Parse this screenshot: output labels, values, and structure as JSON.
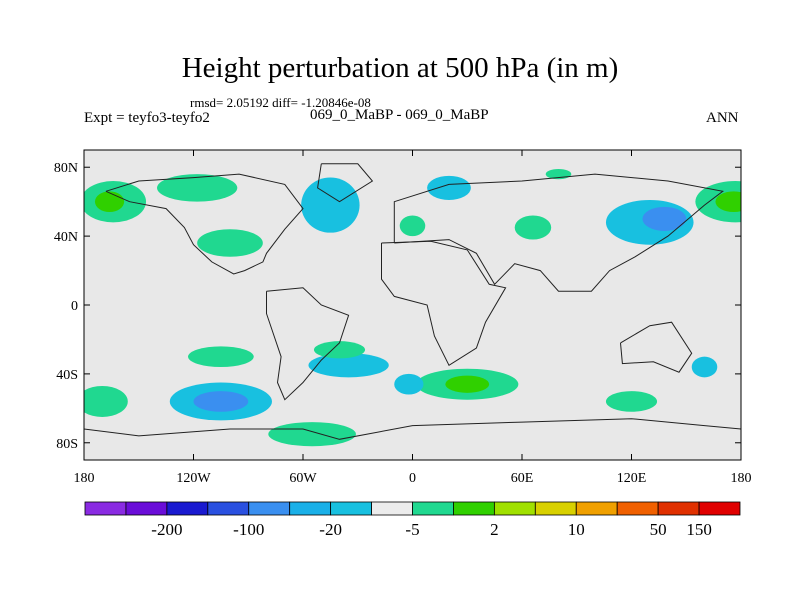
{
  "figure": {
    "title": "Height perturbation at 500 hPa (in m)",
    "stats": "rmsd= 2.05192 diff= -1.20846e-08",
    "expt": "Expt = teyfo3-teyfo2",
    "period": "069_0_MaBP - 069_0_MaBP",
    "season": "ANN"
  },
  "axes": {
    "lat_labels": [
      "80N",
      "40N",
      "0",
      "40S",
      "80S"
    ],
    "lat_values": [
      80,
      40,
      0,
      -40,
      -80
    ],
    "lon_labels": [
      "180",
      "120W",
      "60W",
      "0",
      "60E",
      "120E",
      "180"
    ],
    "lon_values": [
      -180,
      -120,
      -60,
      0,
      60,
      120,
      180
    ],
    "lat_range": [
      -90,
      90
    ],
    "lon_range": [
      -180,
      180
    ]
  },
  "colorbar": {
    "colors": [
      "#8a2be2",
      "#6a0dd8",
      "#1a1ad0",
      "#2a50e0",
      "#3a8ff0",
      "#1ab0e8",
      "#18c0e0",
      "#ececec",
      "#20d890",
      "#30d000",
      "#a0e000",
      "#d8d000",
      "#f0a000",
      "#f06000",
      "#e03000",
      "#e00000"
    ],
    "labels": [
      "-200",
      "-100",
      "-20",
      "-5",
      "2",
      "10",
      "50",
      "150"
    ],
    "label_after_box": [
      1,
      3,
      5,
      7,
      9,
      11,
      13,
      14
    ]
  },
  "chart_data": {
    "type": "heatmap",
    "title": "Height perturbation at 500 hPa (in m)",
    "background_color": "#e8e8e8",
    "regions": [
      {
        "name": "north-pacific-positive",
        "lon": 177,
        "lat": 60,
        "rlon": 22,
        "rlat": 12,
        "color": "#20d890"
      },
      {
        "name": "north-pacific-positive-core",
        "lon": 176,
        "lat": 60,
        "rlon": 10,
        "rlat": 6,
        "color": "#30d000"
      },
      {
        "name": "north-pacific-positive-west",
        "lon": -164,
        "lat": 60,
        "rlon": 18,
        "rlat": 12,
        "color": "#20d890"
      },
      {
        "name": "north-pacific-positive-west-core",
        "lon": -166,
        "lat": 60,
        "rlon": 8,
        "rlat": 6,
        "color": "#30d000"
      },
      {
        "name": "north-america-positive",
        "lon": -118,
        "lat": 68,
        "rlon": 22,
        "rlat": 8,
        "color": "#20d890"
      },
      {
        "name": "central-pacific-positive",
        "lon": -100,
        "lat": 36,
        "rlon": 18,
        "rlat": 8,
        "color": "#20d890"
      },
      {
        "name": "north-atlantic-negative",
        "lon": -45,
        "lat": 58,
        "rlon": 16,
        "rlat": 16,
        "color": "#18c0e0"
      },
      {
        "name": "eurasia-negative",
        "lon": 20,
        "lat": 68,
        "rlon": 12,
        "rlat": 7,
        "color": "#18c0e0"
      },
      {
        "name": "europe-positive",
        "lon": 0,
        "lat": 46,
        "rlon": 7,
        "rlat": 6,
        "color": "#20d890"
      },
      {
        "name": "asia-positive",
        "lon": 66,
        "lat": 45,
        "rlon": 10,
        "rlat": 7,
        "color": "#20d890"
      },
      {
        "name": "north-asia-positive",
        "lon": 80,
        "lat": 76,
        "rlon": 7,
        "rlat": 3,
        "color": "#20d890"
      },
      {
        "name": "east-asia-negative",
        "lon": 130,
        "lat": 48,
        "rlon": 24,
        "rlat": 13,
        "color": "#18c0e0"
      },
      {
        "name": "east-asia-negative-core",
        "lon": 138,
        "lat": 50,
        "rlon": 12,
        "rlat": 7,
        "color": "#3a8ff0"
      },
      {
        "name": "south-pacific-positive-north",
        "lon": -105,
        "lat": -30,
        "rlon": 18,
        "rlat": 6,
        "color": "#20d890"
      },
      {
        "name": "south-pacific-negative",
        "lon": -105,
        "lat": -56,
        "rlon": 28,
        "rlat": 11,
        "color": "#18c0e0"
      },
      {
        "name": "south-pacific-negative-core",
        "lon": -105,
        "lat": -56,
        "rlon": 15,
        "rlat": 6,
        "color": "#3a8ff0"
      },
      {
        "name": "south-pacific-positive-west",
        "lon": -170,
        "lat": -56,
        "rlon": 14,
        "rlat": 9,
        "color": "#20d890"
      },
      {
        "name": "south-atlantic-negative",
        "lon": -35,
        "lat": -35,
        "rlon": 22,
        "rlat": 7,
        "color": "#18c0e0"
      },
      {
        "name": "south-atlantic-positive",
        "lon": -40,
        "lat": -26,
        "rlon": 14,
        "rlat": 5,
        "color": "#20d890"
      },
      {
        "name": "southern-ocean-positive",
        "lon": -55,
        "lat": -75,
        "rlon": 24,
        "rlat": 7,
        "color": "#20d890"
      },
      {
        "name": "south-africa-positive",
        "lon": 30,
        "lat": -46,
        "rlon": 28,
        "rlat": 9,
        "color": "#20d890"
      },
      {
        "name": "south-africa-positive-core",
        "lon": 30,
        "lat": -46,
        "rlon": 12,
        "rlat": 5,
        "color": "#30d000"
      },
      {
        "name": "south-africa-negative",
        "lon": -2,
        "lat": -46,
        "rlon": 8,
        "rlat": 6,
        "color": "#18c0e0"
      },
      {
        "name": "south-indian-positive",
        "lon": 120,
        "lat": -56,
        "rlon": 14,
        "rlat": 6,
        "color": "#20d890"
      },
      {
        "name": "south-indian-negative",
        "lon": 160,
        "lat": -36,
        "rlon": 7,
        "rlat": 6,
        "color": "#18c0e0"
      }
    ],
    "continent_outlines": [
      {
        "name": "north-america-outline",
        "points": [
          [
            -168,
            66
          ],
          [
            -150,
            72
          ],
          [
            -120,
            74
          ],
          [
            -95,
            76
          ],
          [
            -70,
            70
          ],
          [
            -60,
            56
          ],
          [
            -70,
            44
          ],
          [
            -80,
            30
          ],
          [
            -82,
            25
          ],
          [
            -92,
            20
          ],
          [
            -98,
            18
          ],
          [
            -110,
            25
          ],
          [
            -120,
            35
          ],
          [
            -125,
            45
          ],
          [
            -135,
            56
          ],
          [
            -155,
            60
          ],
          [
            -168,
            66
          ]
        ]
      },
      {
        "name": "greenland-outline",
        "points": [
          [
            -50,
            82
          ],
          [
            -30,
            82
          ],
          [
            -22,
            72
          ],
          [
            -40,
            60
          ],
          [
            -52,
            68
          ],
          [
            -50,
            82
          ]
        ]
      },
      {
        "name": "south-america-outline",
        "points": [
          [
            -80,
            8
          ],
          [
            -60,
            10
          ],
          [
            -50,
            0
          ],
          [
            -35,
            -6
          ],
          [
            -40,
            -22
          ],
          [
            -50,
            -32
          ],
          [
            -60,
            -45
          ],
          [
            -70,
            -55
          ],
          [
            -74,
            -45
          ],
          [
            -72,
            -30
          ],
          [
            -80,
            -5
          ],
          [
            -80,
            8
          ]
        ]
      },
      {
        "name": "africa-outline",
        "points": [
          [
            -17,
            36
          ],
          [
            10,
            37
          ],
          [
            30,
            32
          ],
          [
            42,
            12
          ],
          [
            51,
            10
          ],
          [
            40,
            -10
          ],
          [
            35,
            -25
          ],
          [
            20,
            -35
          ],
          [
            12,
            -18
          ],
          [
            8,
            0
          ],
          [
            -10,
            5
          ],
          [
            -17,
            15
          ],
          [
            -17,
            36
          ]
        ]
      },
      {
        "name": "eurasia-outline",
        "points": [
          [
            -10,
            36
          ],
          [
            -10,
            60
          ],
          [
            20,
            70
          ],
          [
            60,
            72
          ],
          [
            100,
            76
          ],
          [
            140,
            72
          ],
          [
            170,
            66
          ],
          [
            160,
            58
          ],
          [
            140,
            40
          ],
          [
            122,
            28
          ],
          [
            108,
            20
          ],
          [
            98,
            8
          ],
          [
            80,
            8
          ],
          [
            70,
            20
          ],
          [
            56,
            24
          ],
          [
            45,
            12
          ],
          [
            35,
            30
          ],
          [
            20,
            38
          ],
          [
            -10,
            36
          ]
        ]
      },
      {
        "name": "australia-outline",
        "points": [
          [
            114,
            -22
          ],
          [
            130,
            -12
          ],
          [
            142,
            -10
          ],
          [
            153,
            -28
          ],
          [
            146,
            -39
          ],
          [
            132,
            -33
          ],
          [
            115,
            -34
          ],
          [
            114,
            -22
          ]
        ]
      },
      {
        "name": "antarctica-outline",
        "points": [
          [
            -180,
            -72
          ],
          [
            -150,
            -76
          ],
          [
            -100,
            -72
          ],
          [
            -60,
            -72
          ],
          [
            -40,
            -78
          ],
          [
            0,
            -70
          ],
          [
            60,
            -68
          ],
          [
            120,
            -66
          ],
          [
            160,
            -70
          ],
          [
            180,
            -72
          ]
        ]
      }
    ]
  }
}
